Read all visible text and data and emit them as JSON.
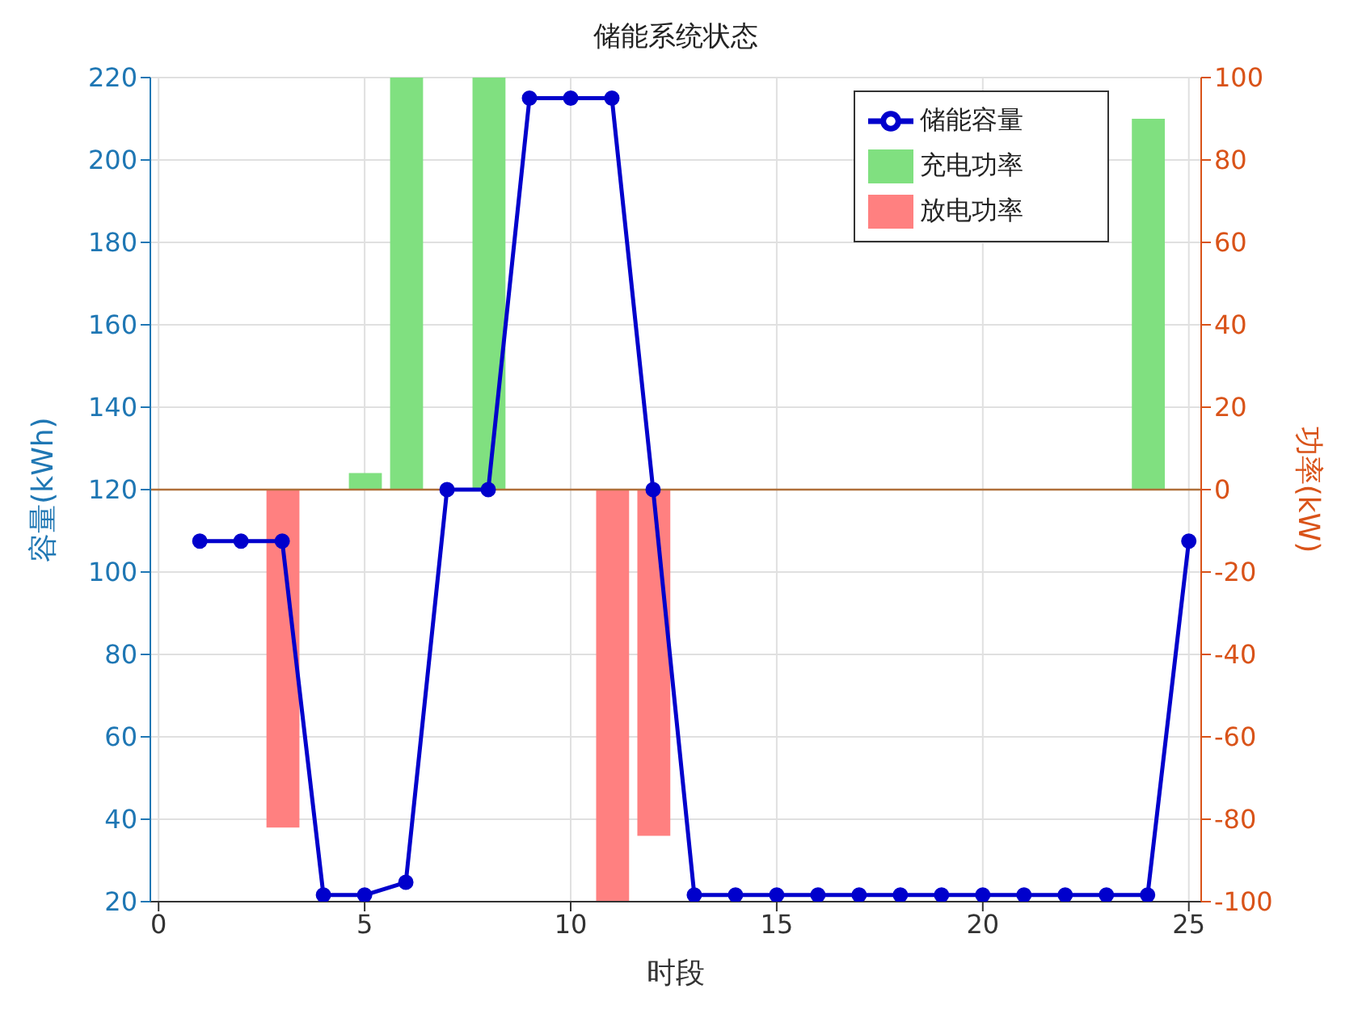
{
  "chart_data": {
    "type": "line",
    "title": "储能系统状态",
    "xlabel": "时段",
    "ylabel": "容量(kWh)",
    "y2label": "功率(kW)",
    "x": [
      1,
      2,
      3,
      4,
      5,
      6,
      7,
      8,
      9,
      10,
      11,
      12,
      13,
      14,
      15,
      16,
      17,
      18,
      19,
      20,
      21,
      22,
      23,
      24,
      25
    ],
    "series": [
      {
        "name": "储能容量",
        "color": "#0000cc",
        "values": [
          107.5,
          107.5,
          107.5,
          21.6,
          21.6,
          24.7,
          120,
          120,
          215,
          215,
          215,
          120,
          21.6,
          21.6,
          21.6,
          21.6,
          21.6,
          21.6,
          21.6,
          21.6,
          21.6,
          21.6,
          21.6,
          21.6,
          107.5
        ]
      },
      {
        "name": "充电功率",
        "type": "bar",
        "axis": "y2",
        "color": "#80e080",
        "values": [
          null,
          null,
          null,
          null,
          4,
          100,
          null,
          100,
          null,
          null,
          null,
          null,
          null,
          null,
          null,
          null,
          null,
          null,
          null,
          null,
          null,
          null,
          null,
          90,
          null
        ]
      },
      {
        "name": "放电功率",
        "type": "bar",
        "axis": "y2",
        "color": "#ff8080",
        "values": [
          null,
          null,
          -82,
          null,
          null,
          null,
          null,
          null,
          null,
          null,
          -100,
          -84,
          null,
          null,
          null,
          null,
          null,
          null,
          null,
          null,
          null,
          null,
          null,
          null,
          null
        ]
      }
    ],
    "xlim": [
      -0.2,
      25.3
    ],
    "xticks": [
      0,
      5,
      10,
      15,
      20,
      25
    ],
    "ylim": [
      20,
      220
    ],
    "yticks": [
      20,
      40,
      60,
      80,
      100,
      120,
      140,
      160,
      180,
      200,
      220
    ],
    "y2lim": [
      -100,
      100
    ],
    "y2ticks": [
      -100,
      -80,
      -60,
      -40,
      -20,
      0,
      20,
      40,
      60,
      80,
      100
    ],
    "ref_lines": [
      {
        "axis": "y2",
        "value": 0,
        "color": "#b0703a"
      }
    ],
    "grid": true,
    "legend": "top right",
    "marker": "circle",
    "line_style": "solid"
  }
}
